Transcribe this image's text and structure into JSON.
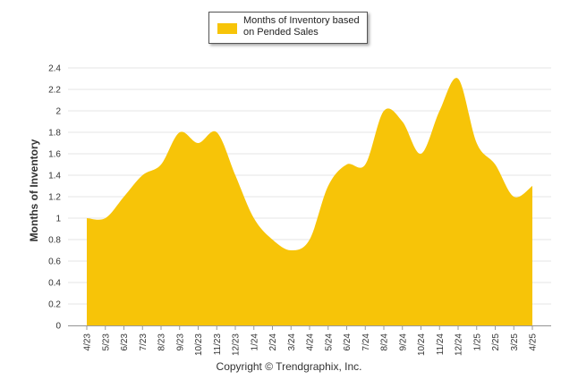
{
  "legend": {
    "label": "Months of Inventory based on Pended Sales",
    "swatch_color": "#F7C408"
  },
  "footer": {
    "copyright": "Copyright © Trendgraphix, Inc."
  },
  "chart_data": {
    "type": "area",
    "title": "",
    "xlabel": "",
    "ylabel": "Months of Inventory",
    "ylim": [
      0,
      2.4
    ],
    "yticks": [
      "0",
      "0.2",
      "0.4",
      "0.6",
      "0.8",
      "1",
      "1.2",
      "1.4",
      "1.6",
      "1.8",
      "2",
      "2.2",
      "2.4"
    ],
    "grid": true,
    "legend_position": "top-center",
    "categories": [
      "4/23",
      "5/23",
      "6/23",
      "7/23",
      "8/23",
      "9/23",
      "10/23",
      "11/23",
      "12/23",
      "1/24",
      "2/24",
      "3/24",
      "4/24",
      "5/24",
      "6/24",
      "7/24",
      "8/24",
      "9/24",
      "10/24",
      "11/24",
      "12/24",
      "1/25",
      "2/25",
      "3/25",
      "4/25"
    ],
    "series": [
      {
        "name": "Months of Inventory based on Pended Sales",
        "color": "#F7C408",
        "values": [
          1.0,
          1.0,
          1.2,
          1.4,
          1.5,
          1.8,
          1.7,
          1.8,
          1.4,
          1.0,
          0.8,
          0.7,
          0.8,
          1.3,
          1.5,
          1.5,
          2.0,
          1.9,
          1.6,
          2.0,
          2.3,
          1.7,
          1.5,
          1.2,
          1.3
        ]
      }
    ]
  }
}
